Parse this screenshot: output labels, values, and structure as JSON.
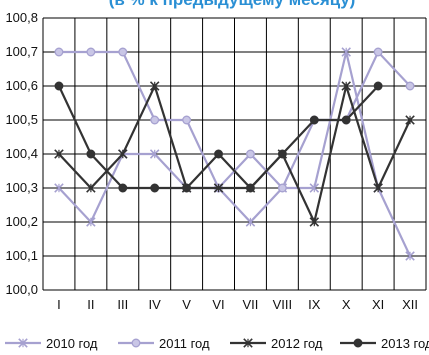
{
  "chart_data": {
    "type": "line",
    "title": "(в % к предыдущему месяцу)",
    "xlabel": "",
    "ylabel": "",
    "categories": [
      "I",
      "II",
      "III",
      "IV",
      "V",
      "VI",
      "VII",
      "VIII",
      "IX",
      "X",
      "XI",
      "XII"
    ],
    "category_labels": [
      "I",
      "II",
      "III",
      "IV",
      "V",
      "VI",
      "VII",
      "VIII",
      "IX",
      "X",
      "XI",
      "XII"
    ],
    "ylim": [
      100.0,
      100.8
    ],
    "yticks": [
      "100,0",
      "100,1",
      "100,2",
      "100,3",
      "100,4",
      "100,5",
      "100,6",
      "100,7",
      "100,8"
    ],
    "grid": true,
    "legend_position": "bottom",
    "series": [
      {
        "name": "2010 год",
        "color": "#a6a1d0",
        "marker": "star",
        "values": [
          100.3,
          100.2,
          100.4,
          100.4,
          100.3,
          100.3,
          100.2,
          100.3,
          100.3,
          100.7,
          100.3,
          100.1
        ]
      },
      {
        "name": "2011 год",
        "color": "#a6a1d0",
        "marker": "circle",
        "values": [
          100.7,
          100.7,
          100.7,
          100.5,
          100.5,
          100.3,
          100.4,
          100.3,
          100.5,
          100.5,
          100.7,
          100.6
        ]
      },
      {
        "name": "2012 год",
        "color": "#333333",
        "marker": "star",
        "values": [
          100.4,
          100.3,
          100.4,
          100.6,
          100.3,
          100.3,
          100.3,
          100.4,
          100.2,
          100.6,
          100.3,
          100.5
        ]
      },
      {
        "name": "2013 год",
        "color": "#333333",
        "marker": "circle",
        "values": [
          100.6,
          100.4,
          100.3,
          100.3,
          100.3,
          100.4,
          100.3,
          100.4,
          100.5,
          100.5,
          100.6,
          null
        ]
      }
    ]
  }
}
